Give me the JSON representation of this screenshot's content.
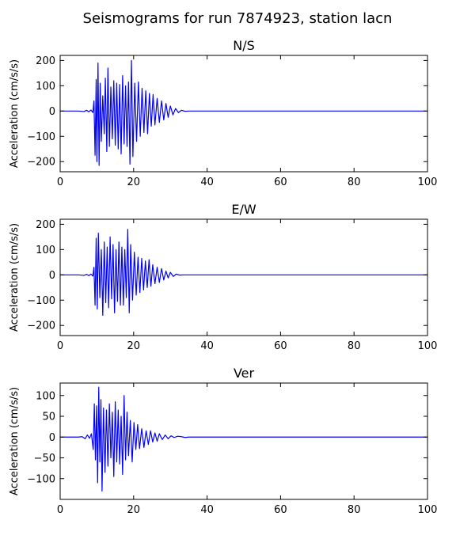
{
  "figure": {
    "title": "Seismograms for run 7874923, station lacn"
  },
  "colors": {
    "trace": "#0000ff",
    "axes": "#000000",
    "background": "#ffffff"
  },
  "chart_data": [
    {
      "type": "line",
      "title": "N/S",
      "xlabel": "",
      "ylabel": "Acceleration (cm/s/s)",
      "xlim": [
        0,
        100
      ],
      "ylim": [
        -240,
        220
      ],
      "xticks": [
        0,
        20,
        40,
        60,
        80,
        100
      ],
      "yticks": [
        -200,
        -100,
        0,
        100,
        200
      ],
      "grid": false,
      "legend": "none",
      "series": [
        {
          "color": "#0000ff",
          "x": [
            0,
            5,
            6.5,
            7.2,
            7.8,
            8.4,
            8.9,
            9.2,
            9.5,
            9.8,
            10.0,
            10.3,
            10.6,
            10.9,
            11.2,
            11.6,
            12.0,
            12.3,
            12.7,
            13.0,
            13.4,
            13.8,
            14.2,
            14.6,
            15.0,
            15.4,
            15.8,
            16.2,
            16.6,
            17.0,
            17.4,
            17.8,
            18.2,
            18.6,
            19.0,
            19.4,
            19.8,
            20.3,
            20.8,
            21.3,
            21.8,
            22.3,
            22.8,
            23.3,
            23.8,
            24.3,
            24.8,
            25.3,
            25.8,
            26.4,
            27.0,
            27.6,
            28.2,
            28.8,
            29.4,
            30.0,
            30.7,
            31.4,
            32.2,
            33.0,
            34.0,
            35.0,
            100
          ],
          "y": [
            0,
            0,
            -2,
            3,
            -3,
            4,
            -6,
            40,
            -175,
            125,
            -200,
            190,
            -215,
            110,
            -120,
            60,
            -90,
            130,
            -160,
            170,
            -140,
            95,
            -110,
            120,
            -135,
            110,
            -150,
            105,
            -170,
            140,
            -130,
            100,
            -140,
            115,
            -210,
            200,
            -180,
            110,
            -120,
            115,
            -100,
            90,
            -85,
            80,
            -90,
            70,
            -60,
            65,
            -55,
            50,
            -45,
            40,
            -35,
            30,
            -25,
            20,
            -15,
            10,
            -6,
            3,
            -1,
            0,
            0
          ]
        }
      ]
    },
    {
      "type": "line",
      "title": "E/W",
      "xlabel": "",
      "ylabel": "Acceleration (cm/s/s)",
      "xlim": [
        0,
        100
      ],
      "ylim": [
        -240,
        220
      ],
      "xticks": [
        0,
        20,
        40,
        60,
        80,
        100
      ],
      "yticks": [
        -200,
        -100,
        0,
        100,
        200
      ],
      "grid": false,
      "legend": "none",
      "series": [
        {
          "color": "#0000ff",
          "x": [
            0,
            5,
            6.5,
            7.2,
            7.8,
            8.4,
            8.9,
            9.2,
            9.5,
            9.8,
            10.1,
            10.4,
            10.8,
            11.2,
            11.6,
            12.0,
            12.4,
            12.8,
            13.2,
            13.6,
            14.0,
            14.4,
            14.8,
            15.2,
            15.6,
            16.0,
            16.4,
            16.8,
            17.2,
            17.6,
            18.0,
            18.4,
            18.8,
            19.2,
            19.7,
            20.2,
            20.7,
            21.2,
            21.7,
            22.2,
            22.7,
            23.2,
            23.7,
            24.2,
            24.7,
            25.2,
            25.8,
            26.4,
            27.0,
            27.6,
            28.2,
            28.8,
            29.4,
            30.0,
            30.8,
            31.6,
            32.5,
            33.5,
            100
          ],
          "y": [
            0,
            0,
            -2,
            2,
            -3,
            3,
            -5,
            30,
            -120,
            145,
            -135,
            165,
            -90,
            100,
            -160,
            130,
            -110,
            110,
            -130,
            150,
            -95,
            120,
            -150,
            100,
            -105,
            130,
            -120,
            110,
            -120,
            100,
            -90,
            180,
            -150,
            120,
            -100,
            90,
            -80,
            70,
            -70,
            65,
            -60,
            55,
            -50,
            60,
            -45,
            40,
            -35,
            30,
            -30,
            25,
            -20,
            15,
            -12,
            10,
            -6,
            3,
            -1,
            0,
            0
          ]
        }
      ]
    },
    {
      "type": "line",
      "title": "Ver",
      "xlabel": "",
      "ylabel": "Acceleration (cm/s/s)",
      "xlim": [
        0,
        100
      ],
      "ylim": [
        -150,
        130
      ],
      "xticks": [
        0,
        20,
        40,
        60,
        80,
        100
      ],
      "yticks": [
        -100,
        -50,
        0,
        50,
        100
      ],
      "grid": false,
      "legend": "none",
      "series": [
        {
          "color": "#0000ff",
          "x": [
            0,
            5,
            6.0,
            6.8,
            7.4,
            8.0,
            8.5,
            9.0,
            9.3,
            9.6,
            9.9,
            10.2,
            10.5,
            10.8,
            11.1,
            11.4,
            11.8,
            12.2,
            12.6,
            13.0,
            13.4,
            13.8,
            14.2,
            14.6,
            15.0,
            15.4,
            15.8,
            16.2,
            16.6,
            17.0,
            17.4,
            17.8,
            18.2,
            18.6,
            19.1,
            19.6,
            20.1,
            20.6,
            21.1,
            21.6,
            22.2,
            22.8,
            23.4,
            24.0,
            24.6,
            25.2,
            25.8,
            26.4,
            27.0,
            27.8,
            28.6,
            29.4,
            30.2,
            31.0,
            32.0,
            33.0,
            34.0,
            35.0,
            100
          ],
          "y": [
            0,
            0,
            1,
            -4,
            5,
            -3,
            8,
            -30,
            80,
            -55,
            75,
            -110,
            120,
            -60,
            90,
            -130,
            70,
            -85,
            65,
            -70,
            80,
            -50,
            60,
            -95,
            85,
            -60,
            65,
            -65,
            50,
            -90,
            100,
            -55,
            60,
            -45,
            40,
            -60,
            35,
            -30,
            30,
            -28,
            20,
            -25,
            15,
            -18,
            15,
            -12,
            10,
            -10,
            8,
            -6,
            5,
            -4,
            3,
            -1,
            2,
            1,
            -1,
            0,
            0
          ]
        }
      ]
    }
  ]
}
